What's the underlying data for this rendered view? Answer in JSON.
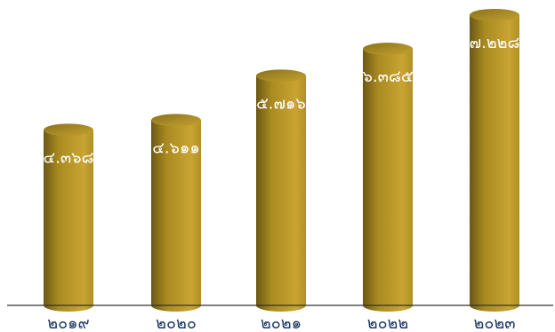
{
  "chart_data": {
    "type": "bar",
    "style": "3d-cylinder",
    "categories": [
      "๒๐๑๙",
      "๒๐๒๐",
      "๒๐๒๑",
      "๒๐๒๒",
      "๒๐๒๓"
    ],
    "values": [
      4.368,
      4.611,
      5.716,
      6.385,
      7.228
    ],
    "value_labels": [
      "๔.๓๖๘",
      "๔.๖๑๑",
      "๕.๗๑๖",
      "๖.๓๘๕",
      "๗.๒๒๘"
    ],
    "ylim": [
      0,
      7.228
    ],
    "grid": false,
    "legend": false
  },
  "colors": {
    "bar_light": "#c8a232",
    "bar_dark": "#5a4a12",
    "bar_mid": "#a8891e",
    "bar_top": "#b8962a",
    "value_label": "#ffffff",
    "tick_label": "#1f3a68",
    "axis": "#333333"
  }
}
